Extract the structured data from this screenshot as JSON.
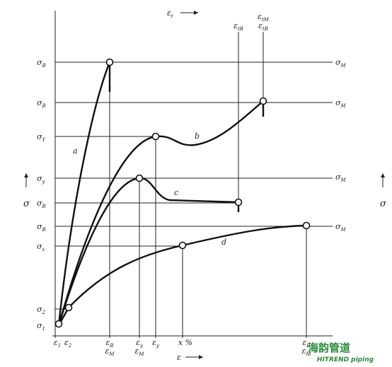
{
  "top_axis": {
    "sym": "ε",
    "sub": "t"
  },
  "bottom_axis": {
    "sym": "ε"
  },
  "left_axis": {
    "sym": "σ"
  },
  "right_axis": {
    "sym": "σ"
  },
  "left_labels": [
    {
      "sym": "σ",
      "sub": "B"
    },
    {
      "sym": "σ",
      "sub": "B"
    },
    {
      "sym": "σ",
      "sub": "Y"
    },
    {
      "sym": "σ",
      "sub": "y"
    },
    {
      "sym": "σ",
      "sub": "B"
    },
    {
      "sym": "σ",
      "sub": "B"
    },
    {
      "sym": "σ",
      "sub": "x"
    },
    {
      "sym": "σ",
      "sub": "2"
    },
    {
      "sym": "σ",
      "sub": "1"
    }
  ],
  "right_labels": [
    {
      "sym": "σ",
      "sub": "M"
    },
    {
      "sym": "σ",
      "sub": "M"
    },
    {
      "sym": "σ",
      "sub": "M"
    },
    {
      "sym": "σ",
      "sub": "M"
    }
  ],
  "top_labels": [
    [
      {
        "sym": "ε",
        "sub": "tB"
      }
    ],
    [
      {
        "sym": "ε",
        "sub": "tM"
      },
      {
        "sym": "ε",
        "sub": "tB"
      }
    ]
  ],
  "bottom_labels": [
    [
      {
        "sym": "ε",
        "sub": "1"
      }
    ],
    [
      {
        "sym": "ε",
        "sub": "2"
      }
    ],
    [
      {
        "sym": "ε",
        "sub": "B"
      },
      {
        "sym": "ε",
        "sub": "M"
      }
    ],
    [
      {
        "sym": "ε",
        "sub": "y"
      },
      {
        "sym": "ε",
        "sub": "M"
      }
    ],
    [
      {
        "sym": "ε",
        "sub": "y"
      }
    ],
    [
      {
        "sym": "x %"
      }
    ],
    [
      {
        "sym": "ε",
        "sub": "B"
      },
      {
        "sym": "ε",
        "sub": "M"
      }
    ]
  ],
  "curves": [
    {
      "label": "a"
    },
    {
      "label": "b"
    },
    {
      "label": "c"
    },
    {
      "label": "d"
    }
  ],
  "watermark": {
    "title": "海韵管道",
    "subtitle": "HITREND piping"
  }
}
